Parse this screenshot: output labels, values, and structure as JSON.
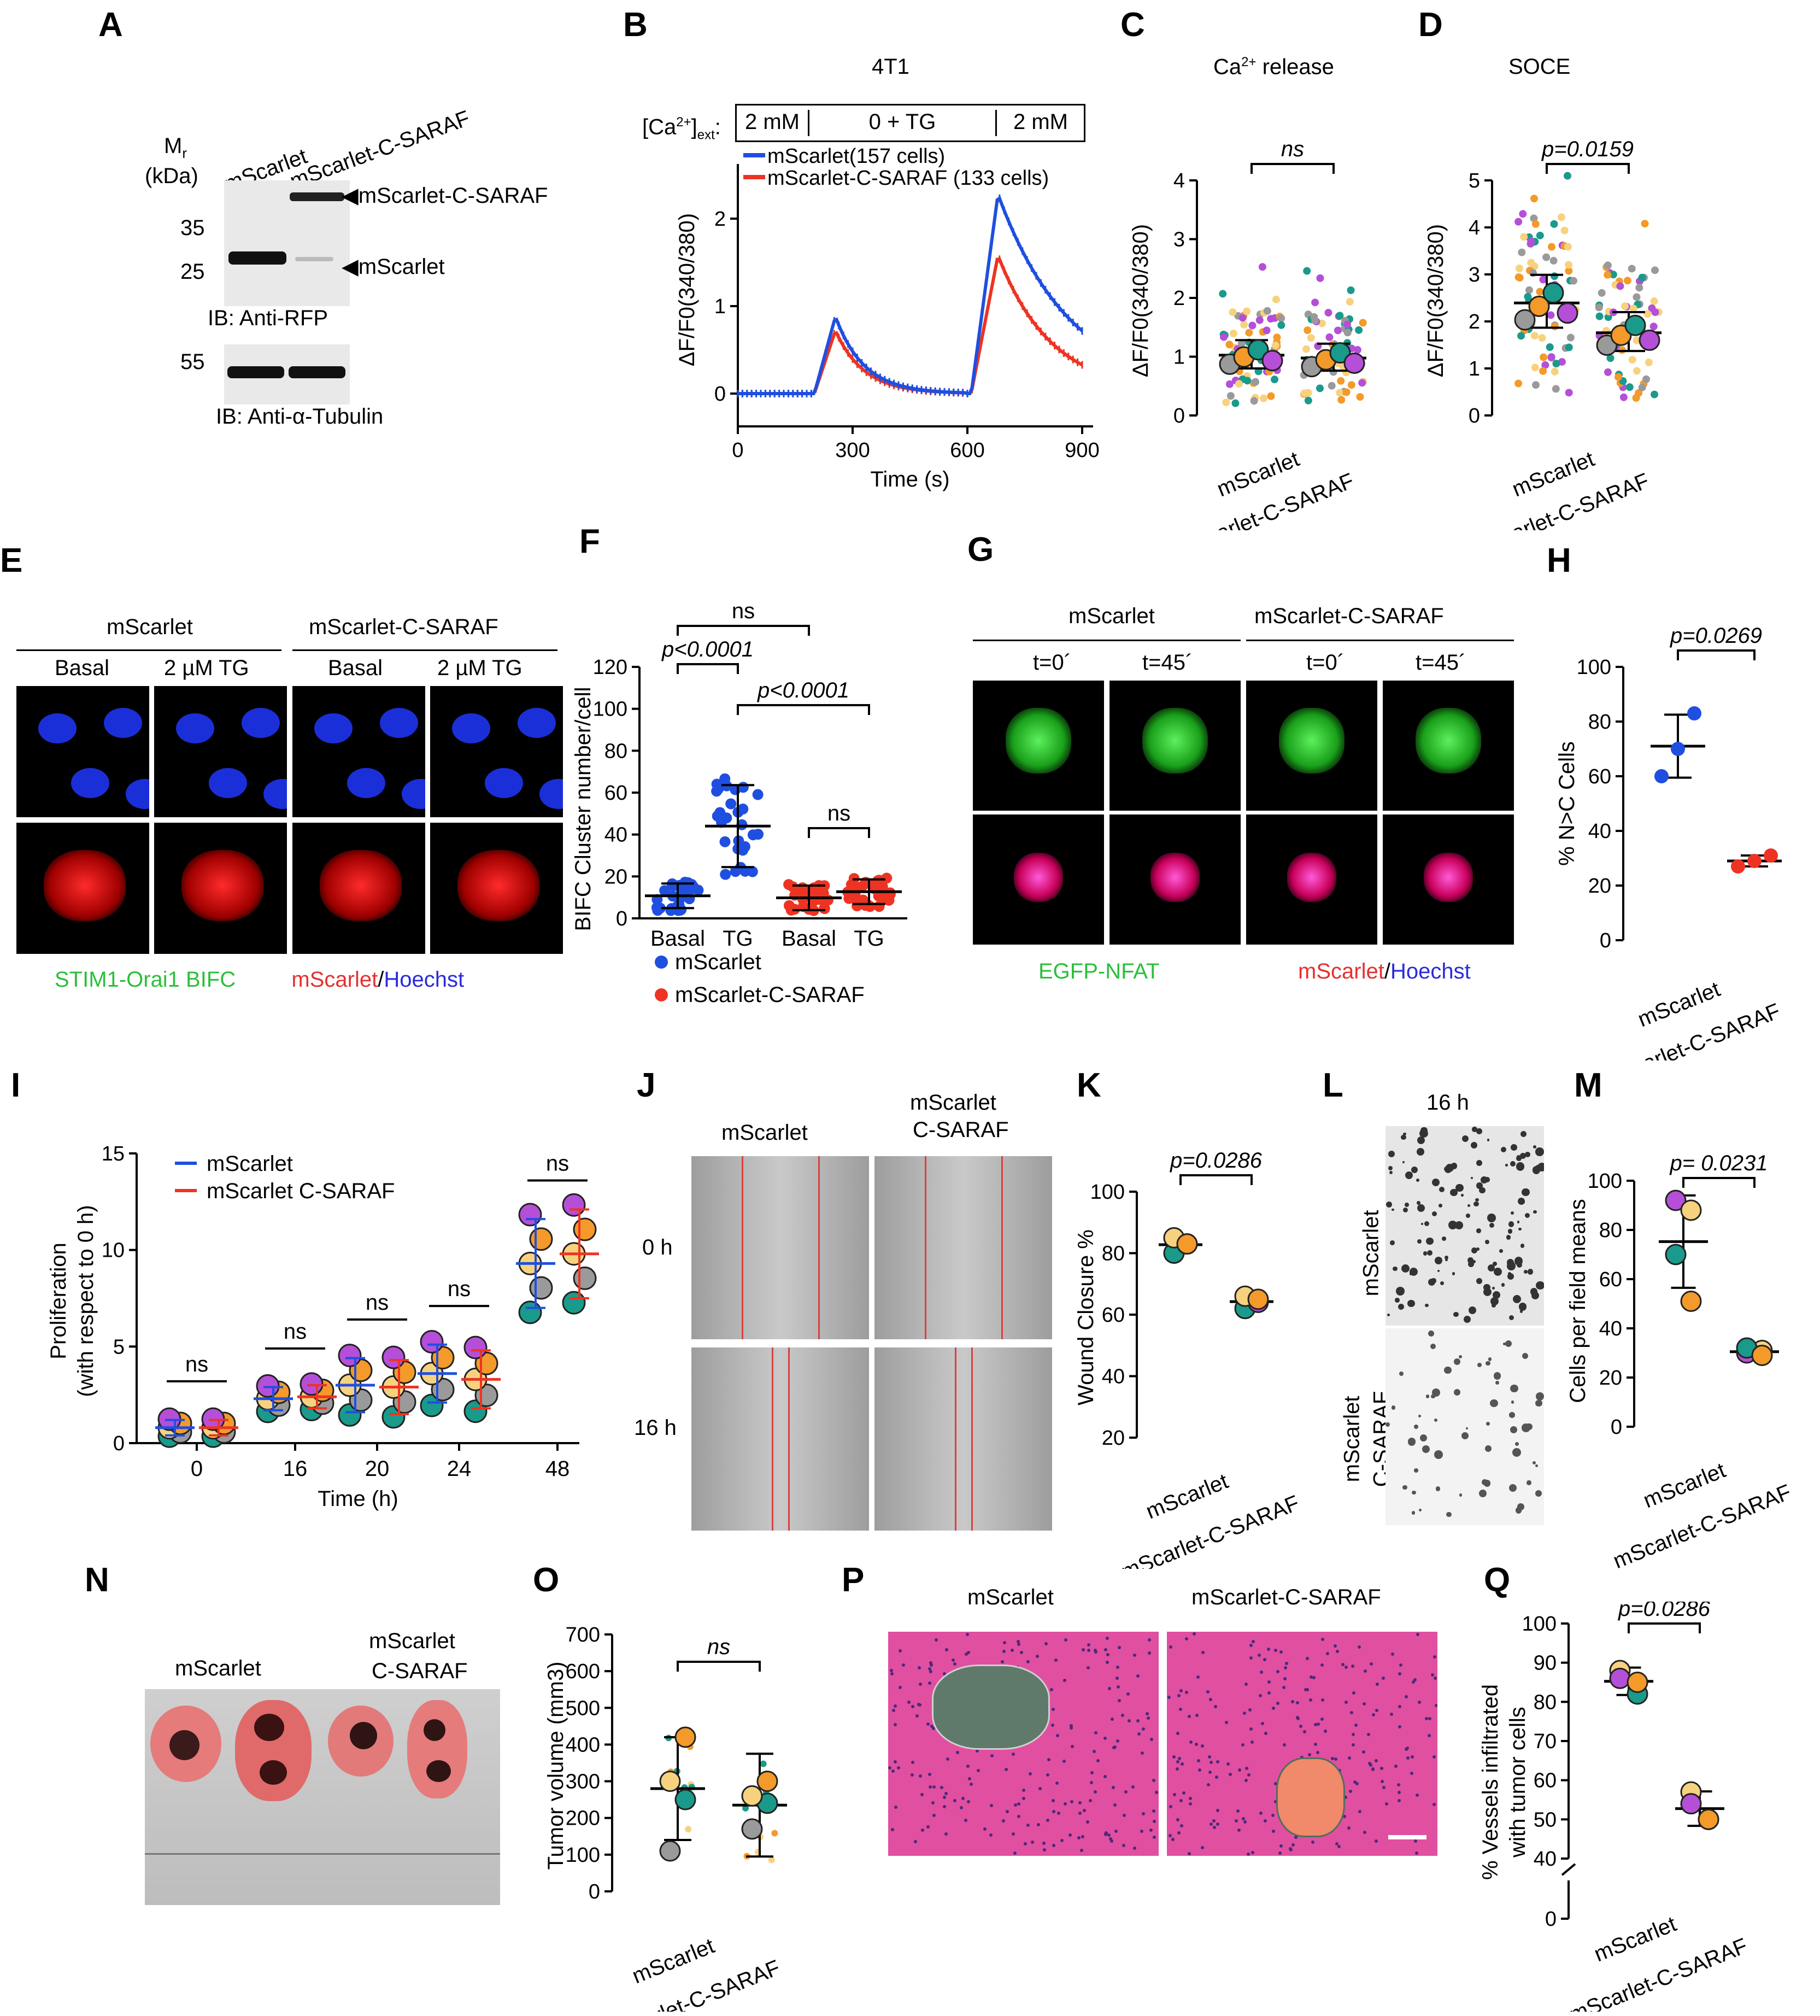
{
  "figure": {
    "panel_letters": [
      "A",
      "B",
      "C",
      "D",
      "E",
      "F",
      "G",
      "H",
      "I",
      "J",
      "K",
      "L",
      "M",
      "N",
      "O",
      "P",
      "Q"
    ]
  },
  "A": {
    "mr": "Mr",
    "kda": "(kDa)",
    "lanes": [
      "mScarlet",
      "mScarlet-C-SARAF"
    ],
    "markers": [
      "35",
      "25",
      "55"
    ],
    "band_labels": [
      "◀mScarlet-C-SARAF",
      "◀mScarlet"
    ],
    "ib1": "IB: Anti-RFP",
    "ib2": "IB: Anti-α-Tubulin"
  },
  "B": {
    "title": "4T1",
    "ca_label": "[Ca2+]ext:",
    "segments": [
      "2 mM",
      "0 + TG",
      "2 mM"
    ],
    "legend": [
      "mScarlet(157 cells)",
      "mScarlet-C-SARAF (133 cells)"
    ],
    "ylabel": "ΔF/F0(340/380)",
    "xlabel": "Time (s)",
    "xticks": [
      "0",
      "300",
      "600",
      "900"
    ],
    "yticks": [
      "0",
      "1",
      "2"
    ],
    "colors": {
      "mScarlet": "#1f4fe0",
      "cSARAF": "#ee3322"
    }
  },
  "C": {
    "title": "Ca2+ release",
    "sig": "ns",
    "ylabel": "ΔF/F0(340/380)",
    "yticks": [
      "0",
      "1",
      "2",
      "3",
      "4"
    ],
    "groups": [
      "mScarlet",
      "mScarlet-C-SARAF"
    ]
  },
  "D": {
    "title": "SOCE",
    "sig": "p=0.0159",
    "ylabel": "ΔF/F0(340/380)",
    "yticks": [
      "0",
      "1",
      "2",
      "3",
      "4",
      "5"
    ],
    "groups": [
      "mScarlet",
      "mScarlet-C-SARAF"
    ]
  },
  "E": {
    "groups": [
      "mScarlet",
      "mScarlet-C-SARAF"
    ],
    "conditions": [
      "Basal",
      "2 µM TG",
      "Basal",
      "2 µM TG"
    ],
    "cap_green": "STIM1-Orai1 BIFC",
    "cap_red": "mScarlet",
    "cap_slash": "/",
    "cap_blue": "Hoechst"
  },
  "F": {
    "ylabel": "BIFC Cluster number/cell",
    "yticks": [
      "0",
      "20",
      "40",
      "60",
      "80",
      "100",
      "120"
    ],
    "xcats": [
      "Basal",
      "TG",
      "Basal",
      "TG"
    ],
    "sig": [
      "ns",
      "p<0.0001",
      "p<0.0001",
      "ns"
    ],
    "legend": [
      "mScarlet",
      "mScarlet-C-SARAF"
    ]
  },
  "G": {
    "groups": [
      "mScarlet",
      "mScarlet-C-SARAF"
    ],
    "times": [
      "t=0´",
      "t=45´",
      "t=0´",
      "t=45´"
    ],
    "cap_green": "EGFP-NFAT",
    "cap_red": "mScarlet",
    "cap_slash": "/",
    "cap_blue": "Hoechst"
  },
  "H": {
    "ylabel": "% N>C Cells",
    "yticks": [
      "0",
      "20",
      "40",
      "60",
      "80",
      "100"
    ],
    "sig": "p=0.0269",
    "groups": [
      "mScarlet",
      "mScarlet-C-SARAF"
    ]
  },
  "I": {
    "ylabel1": "Proliferation",
    "ylabel2": "(with respect to 0 h)",
    "xlabel": "Time (h)",
    "xticks": [
      "0",
      "16",
      "20",
      "24",
      "48"
    ],
    "yticks": [
      "0",
      "5",
      "10",
      "15"
    ],
    "sig": [
      "ns",
      "ns",
      "ns",
      "ns",
      "ns"
    ],
    "legend": [
      "mScarlet",
      "mScarlet C-SARAF"
    ]
  },
  "J": {
    "cols": [
      "mScarlet",
      "mScarlet\nC-SARAF"
    ],
    "col1": "mScarlet",
    "col2a": "mScarlet",
    "col2b": "C-SARAF",
    "rows": [
      "0 h",
      "16 h"
    ]
  },
  "K": {
    "ylabel": "Wound Closure %",
    "yticks": [
      "20",
      "40",
      "60",
      "80",
      "100"
    ],
    "sig": "p=0.0286",
    "groups": [
      "mScarlet",
      "mScarlet-C-SARAF"
    ]
  },
  "L": {
    "title": "16 h",
    "row1": "mScarlet",
    "row2a": "mScarlet",
    "row2b": "C-SARAF"
  },
  "M": {
    "ylabel": "Cells per field means",
    "yticks": [
      "0",
      "20",
      "40",
      "60",
      "80",
      "100"
    ],
    "sig": "p= 0.0231",
    "groups": [
      "mScarlet",
      "mScarlet-C-SARAF"
    ]
  },
  "N": {
    "label1": "mScarlet",
    "label2a": "mScarlet",
    "label2b": "C-SARAF"
  },
  "O": {
    "ylabel": "Tumor volume (mm3)",
    "yticks": [
      "0",
      "100",
      "200",
      "300",
      "400",
      "500",
      "600",
      "700"
    ],
    "sig": "ns",
    "groups": [
      "mScarlet",
      "mScarlet-C-SARAF"
    ]
  },
  "P": {
    "labels": [
      "mScarlet",
      "mScarlet-C-SARAF"
    ]
  },
  "Q": {
    "ylabel1": "% Vessels infiltrated",
    "ylabel2": "with tumor cells",
    "yticks": [
      "0",
      "40",
      "50",
      "60",
      "70",
      "80",
      "90",
      "100"
    ],
    "sig": "p=0.0286",
    "groups": [
      "mScarlet",
      "mScarlet-C-SARAF"
    ]
  },
  "colors": {
    "teal": "#1a9a8a",
    "orange": "#f39a2a",
    "purple": "#b54fd8",
    "gray": "#9a9a9a",
    "yellow": "#f7d27e",
    "blue": "#1f4fe0",
    "red": "#ee3322"
  }
}
